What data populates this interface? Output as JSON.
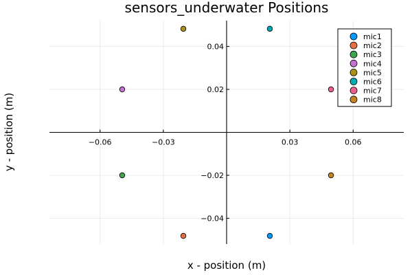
{
  "chart_data": {
    "type": "scatter",
    "title": "sensors_underwater Positions",
    "xlabel": "x - position (m)",
    "ylabel": "y - position (m)",
    "xlim": [
      -0.084,
      0.084
    ],
    "ylim": [
      -0.052,
      0.052
    ],
    "xticks": [
      -0.06,
      -0.03,
      0.03,
      0.06
    ],
    "xtick_labels": [
      "−0.06",
      "−0.03",
      "0.03",
      "0.06"
    ],
    "yticks": [
      -0.04,
      -0.02,
      0.02,
      0.04
    ],
    "ytick_labels": [
      "−0.04",
      "−0.02",
      "0.02",
      "0.04"
    ],
    "grid": true,
    "legend_position": "top-right",
    "series": [
      {
        "name": "mic1",
        "color": "#009AFA",
        "x": [
          0.0205
        ],
        "y": [
          -0.0482
        ]
      },
      {
        "name": "mic2",
        "color": "#E36F47",
        "x": [
          -0.0205
        ],
        "y": [
          -0.0482
        ]
      },
      {
        "name": "mic3",
        "color": "#3EA44E",
        "x": [
          -0.0495
        ],
        "y": [
          -0.02
        ]
      },
      {
        "name": "mic4",
        "color": "#C371D2",
        "x": [
          -0.0495
        ],
        "y": [
          0.02
        ]
      },
      {
        "name": "mic5",
        "color": "#AC8E18",
        "x": [
          -0.0205
        ],
        "y": [
          0.0482
        ]
      },
      {
        "name": "mic6",
        "color": "#00AAAE",
        "x": [
          0.0205
        ],
        "y": [
          0.0482
        ]
      },
      {
        "name": "mic7",
        "color": "#ED5E93",
        "x": [
          0.0495
        ],
        "y": [
          0.02
        ]
      },
      {
        "name": "mic8",
        "color": "#C68225",
        "x": [
          0.0495
        ],
        "y": [
          -0.02
        ]
      }
    ]
  }
}
